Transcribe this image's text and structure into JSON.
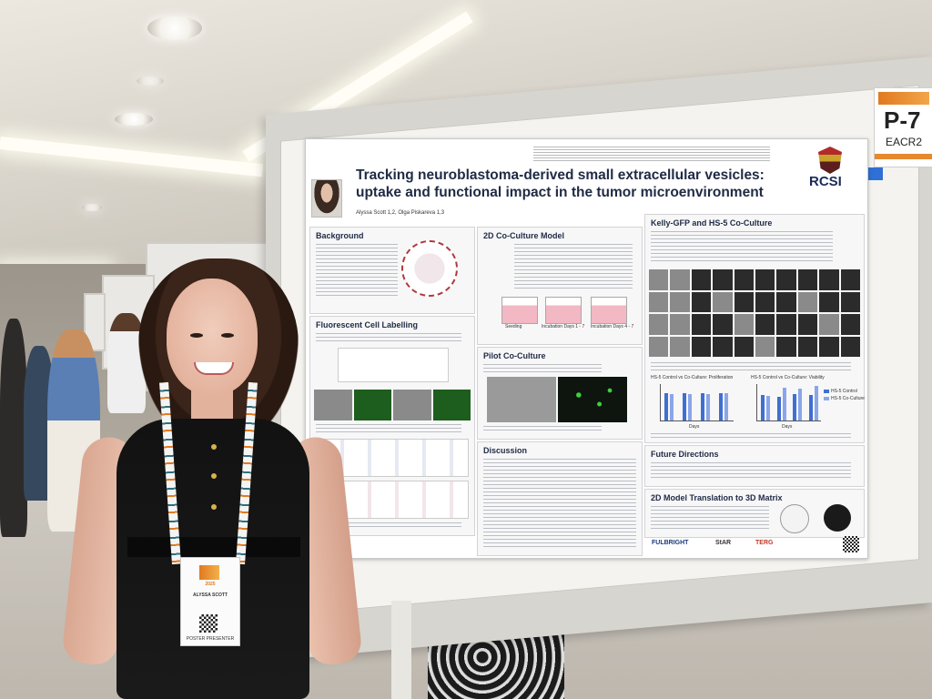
{
  "poster": {
    "title": "Tracking neuroblastoma-derived small extracellular vesicles: uptake and functional impact in the tumor microenvironment",
    "authors": "Alyssa Scott 1,2, Olga Piskareva 1,3",
    "logo": "RCSI",
    "sections": {
      "background": "Background",
      "fluorescent": "Fluorescent Cell Labelling",
      "coculture_2d": "2D Co-Culture Model",
      "pilot": "Pilot Co-Culture",
      "kelly": "Kelly-GFP and HS-5 Co-Culture",
      "discussion": "Discussion",
      "future": "Future Directions",
      "translation": "2D Model Translation to 3D Matrix"
    },
    "chart_labels": {
      "proliferation": "HS-5 Control vs Co-Culture: Proliferation",
      "viability": "HS-5 Control vs Co-Culture: Viability",
      "legend_control": "HS-5 Control",
      "legend_coculture": "HS-5 Co-Culture",
      "x_label": "Days",
      "days": [
        "1",
        "3",
        "5",
        "7"
      ]
    },
    "step_labels": {
      "seeding": "Seeding",
      "incubation_1": "Incubation Days 1 - 7",
      "incubation_2": "Incubation Days 4 - 7"
    },
    "sponsors": [
      "FULBRIGHT",
      "StAR",
      "TERG"
    ]
  },
  "pcard": {
    "number": "P-7",
    "event": "EACR2"
  },
  "badge": {
    "year": "2025",
    "name": "ALYSSA SCOTT",
    "role": "POSTER PRESENTER"
  },
  "colors": {
    "title": "#1f2a44",
    "control_bars": "#3f6fd1",
    "coculture_bars": "#8aa6e8",
    "accent_orange": "#e07a20"
  }
}
